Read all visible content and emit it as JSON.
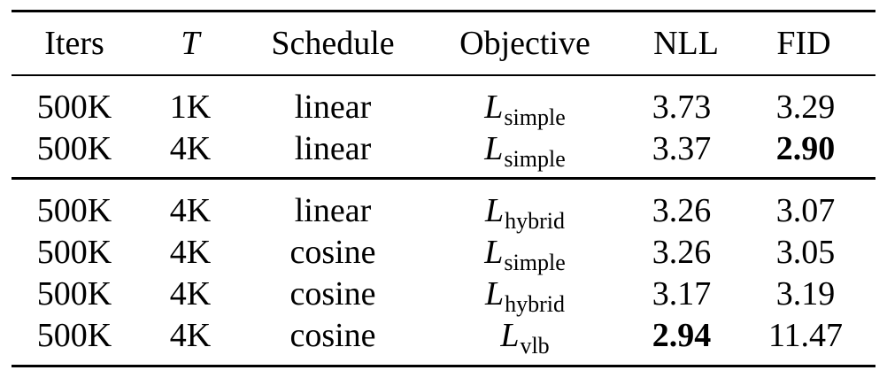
{
  "table": {
    "headers": [
      "Iters",
      "T",
      "Schedule",
      "Objective",
      "NLL",
      "FID"
    ],
    "groups": [
      {
        "rows": [
          {
            "iters": "500K",
            "T": "1K",
            "schedule": "linear",
            "objective_main": "L",
            "objective_sub": "simple",
            "nll": "3.73",
            "fid": "3.29",
            "nll_bold": false,
            "fid_bold": false
          },
          {
            "iters": "500K",
            "T": "4K",
            "schedule": "linear",
            "objective_main": "L",
            "objective_sub": "simple",
            "nll": "3.37",
            "fid": "2.90",
            "nll_bold": false,
            "fid_bold": true
          }
        ]
      },
      {
        "rows": [
          {
            "iters": "500K",
            "T": "4K",
            "schedule": "linear",
            "objective_main": "L",
            "objective_sub": "hybrid",
            "nll": "3.26",
            "fid": "3.07",
            "nll_bold": false,
            "fid_bold": false
          },
          {
            "iters": "500K",
            "T": "4K",
            "schedule": "cosine",
            "objective_main": "L",
            "objective_sub": "simple",
            "nll": "3.26",
            "fid": "3.05",
            "nll_bold": false,
            "fid_bold": false
          },
          {
            "iters": "500K",
            "T": "4K",
            "schedule": "cosine",
            "objective_main": "L",
            "objective_sub": "hybrid",
            "nll": "3.17",
            "fid": "3.19",
            "nll_bold": false,
            "fid_bold": false
          },
          {
            "iters": "500K",
            "T": "4K",
            "schedule": "cosine",
            "objective_main": "L",
            "objective_sub": "vlb",
            "nll": "2.94",
            "fid": "11.47",
            "nll_bold": true,
            "fid_bold": false
          }
        ]
      }
    ]
  }
}
